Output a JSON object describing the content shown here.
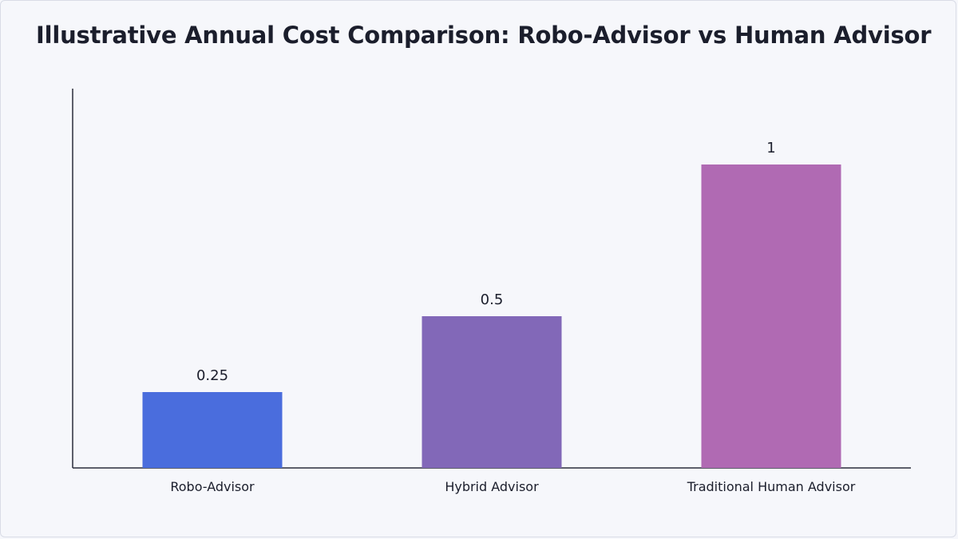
{
  "chart_data": {
    "type": "bar",
    "title": "Illustrative Annual Cost Comparison: Robo-Advisor vs Human Advisor",
    "categories": [
      "Robo-Advisor",
      "Hybrid Advisor",
      "Traditional Human Advisor"
    ],
    "values": [
      0.25,
      0.5,
      1
    ],
    "value_labels": [
      "0.25",
      "0.5",
      "1"
    ],
    "colors": [
      "#4a6ddd",
      "#8268b8",
      "#b06ab3"
    ],
    "xlabel": "",
    "ylabel": "",
    "ylim": [
      0,
      1.25
    ],
    "grid": false,
    "legend": "none"
  }
}
